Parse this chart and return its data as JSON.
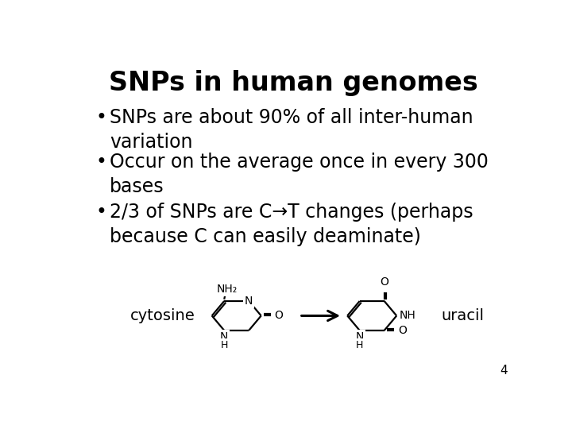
{
  "title": "SNPs in human genomes",
  "title_fontsize": 24,
  "title_fontweight": "bold",
  "bullet_fontsize": 17,
  "bullets": [
    "SNPs are about 90% of all inter-human\nvariation",
    "Occur on the average once in every 300\nbases",
    "2/3 of SNPs are C→T changes (perhaps\nbecause C can easily deaminate)"
  ],
  "cytosine_label": "cytosine",
  "uracil_label": "uracil",
  "slide_number": "4",
  "background_color": "#ffffff",
  "text_color": "#000000",
  "label_fontsize": 14,
  "slide_num_fontsize": 11,
  "chem_fontsize": 10
}
